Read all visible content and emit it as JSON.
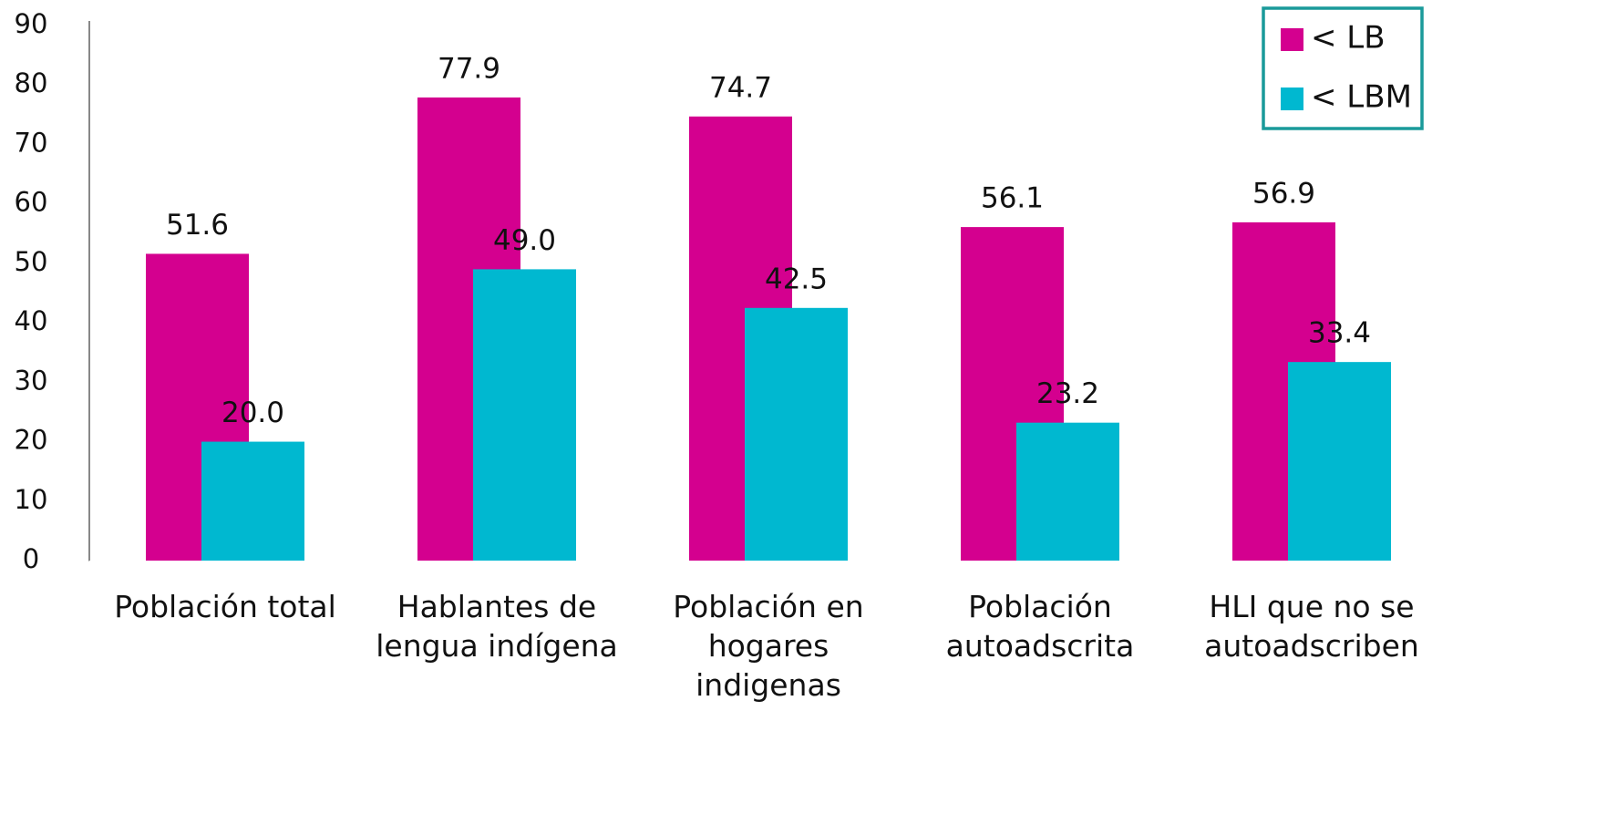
{
  "chart_data": {
    "type": "bar",
    "categories": [
      "Población total",
      "Hablantes de lengua indígena",
      "Población en hogares indigenas",
      "Población autoadscrita",
      "HLI que no se autoadscriben"
    ],
    "series": [
      {
        "name": "< LB",
        "color": "#d4008f",
        "values": [
          51.6,
          77.9,
          74.7,
          56.1,
          56.9
        ],
        "value_labels": [
          "51.6",
          "77.9",
          "74.7",
          "56.1",
          "56.9"
        ]
      },
      {
        "name": "< LBM",
        "color": "#00b8d0",
        "values": [
          20.0,
          49.0,
          42.5,
          23.2,
          33.4
        ],
        "value_labels": [
          "20.0",
          "49.0",
          "42.5",
          "23.2",
          "33.4"
        ]
      }
    ],
    "ylim": [
      0,
      90
    ],
    "yticks": [
      0,
      10,
      20,
      30,
      40,
      50,
      60,
      70,
      80,
      90
    ],
    "grid": false,
    "legend": "top-right"
  }
}
